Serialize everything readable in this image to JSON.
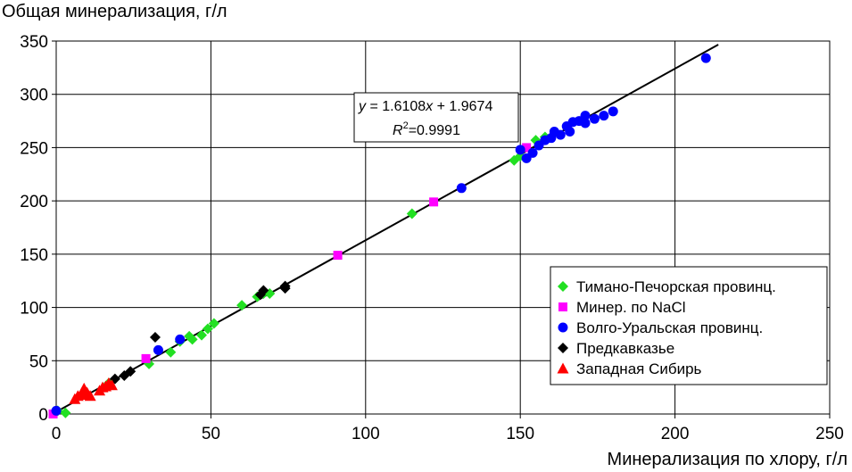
{
  "chart_data": {
    "type": "scatter",
    "ylabel": "Общая минерализация, г/л",
    "xlabel": "Минерализация по хлору, г/л",
    "xlim": [
      0,
      250
    ],
    "ylim": [
      0,
      350
    ],
    "xticks": [
      "0",
      "50",
      "100",
      "150",
      "200",
      "250"
    ],
    "yticks": [
      "0",
      "50",
      "100",
      "150",
      "200",
      "250",
      "300",
      "350"
    ],
    "grid": true,
    "legend_position": "bottom-right",
    "trendline": {
      "slope": 1.6108,
      "intercept": 1.9674,
      "x_range": [
        0,
        214
      ],
      "equation_label": {
        "y": "y",
        "eq": " = 1.6108",
        "x": "x",
        "rest": " + 1.9674"
      },
      "r2_label": {
        "r": "R",
        "sup": "2",
        "rest": "=0.9991"
      }
    },
    "series": [
      {
        "name": "Тимано-Печорская провинц.",
        "marker": "diamond",
        "color": "#22e022",
        "points": [
          [
            0.5,
            3
          ],
          [
            3,
            1
          ],
          [
            17,
            29
          ],
          [
            30,
            47
          ],
          [
            37,
            58
          ],
          [
            40,
            68
          ],
          [
            43,
            73
          ],
          [
            44,
            70
          ],
          [
            47,
            74
          ],
          [
            49,
            80
          ],
          [
            51,
            85
          ],
          [
            60,
            102
          ],
          [
            65,
            110
          ],
          [
            67,
            113
          ],
          [
            69,
            113
          ],
          [
            115,
            188
          ],
          [
            148,
            238
          ],
          [
            150,
            242
          ],
          [
            155,
            257
          ],
          [
            158,
            260
          ]
        ]
      },
      {
        "name": "Минер. по NaCl",
        "marker": "square",
        "color": "#ff00ff",
        "points": [
          [
            -1,
            0
          ],
          [
            29,
            52
          ],
          [
            91,
            149
          ],
          [
            122,
            199
          ],
          [
            152,
            250
          ]
        ]
      },
      {
        "name": "Волго-Уральская провинц.",
        "marker": "circle",
        "color": "#0000ff",
        "points": [
          [
            0,
            3
          ],
          [
            33,
            60
          ],
          [
            40,
            70
          ],
          [
            131,
            212
          ],
          [
            150,
            248
          ],
          [
            152,
            240
          ],
          [
            154,
            245
          ],
          [
            156,
            252
          ],
          [
            158,
            257
          ],
          [
            160,
            259
          ],
          [
            161,
            265
          ],
          [
            163,
            262
          ],
          [
            165,
            270
          ],
          [
            166,
            265
          ],
          [
            167,
            274
          ],
          [
            169,
            275
          ],
          [
            171,
            280
          ],
          [
            171,
            273
          ],
          [
            174,
            277
          ],
          [
            177,
            280
          ],
          [
            180,
            284
          ],
          [
            210,
            334
          ]
        ]
      },
      {
        "name": "Предкавказье",
        "marker": "diamond",
        "color": "#000000",
        "points": [
          [
            19,
            33
          ],
          [
            22,
            36
          ],
          [
            24,
            40
          ],
          [
            32,
            72
          ],
          [
            66,
            112
          ],
          [
            67,
            116
          ],
          [
            74,
            118
          ],
          [
            74,
            120
          ]
        ]
      },
      {
        "name": "Западная Сибирь",
        "marker": "triangle",
        "color": "#ff0000",
        "points": [
          [
            6,
            14
          ],
          [
            7,
            17
          ],
          [
            8,
            18
          ],
          [
            9,
            19
          ],
          [
            9,
            24
          ],
          [
            10,
            20
          ],
          [
            11,
            17
          ],
          [
            14,
            22
          ],
          [
            15,
            25
          ],
          [
            16,
            26
          ],
          [
            17,
            29
          ],
          [
            18,
            27
          ]
        ]
      }
    ]
  }
}
